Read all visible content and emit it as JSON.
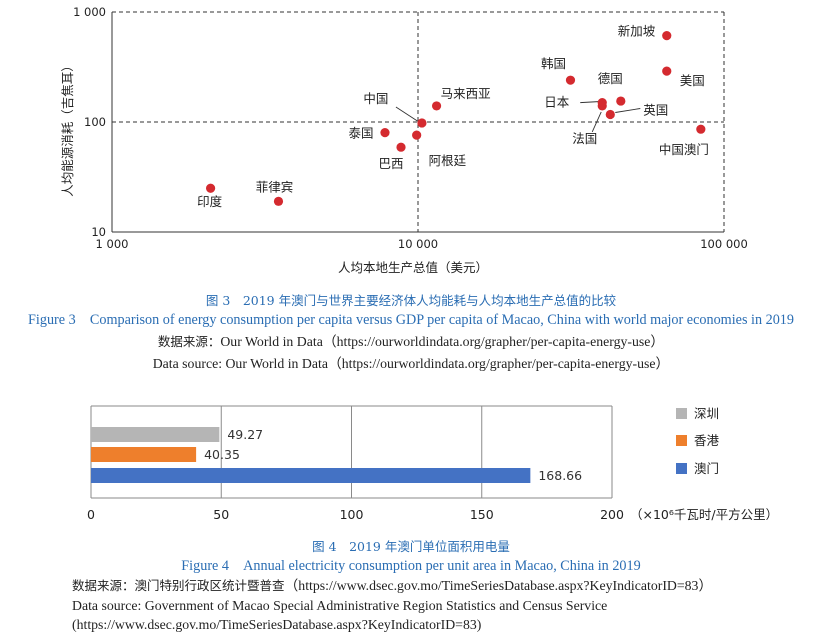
{
  "chart_data": [
    {
      "type": "scatter",
      "title": "",
      "xlabel": "人均本地生产总值（美元）",
      "ylabel": "人均能源消耗（吉焦耳）",
      "x_scale": "log",
      "y_scale": "log",
      "xlim": [
        1000,
        100000
      ],
      "ylim": [
        10,
        1000
      ],
      "x_ticks": [
        1000,
        10000,
        100000
      ],
      "x_tick_labels": [
        "1 000",
        "10 000",
        "100 000"
      ],
      "y_ticks": [
        10,
        100,
        1000
      ],
      "y_tick_labels": [
        "10",
        "100",
        "1 000"
      ],
      "reference_lines": {
        "x": 10000,
        "y": 100,
        "style": "dashed"
      },
      "grid": false,
      "point_color": "#d42a2f",
      "points": [
        {
          "label": "印度",
          "x": 2100,
          "y": 25
        },
        {
          "label": "菲律宾",
          "x": 3500,
          "y": 19
        },
        {
          "label": "泰国",
          "x": 7800,
          "y": 80
        },
        {
          "label": "巴西",
          "x": 8800,
          "y": 59
        },
        {
          "label": "阿根廷",
          "x": 9900,
          "y": 76
        },
        {
          "label": "中国",
          "x": 10300,
          "y": 98
        },
        {
          "label": "马来西亚",
          "x": 11500,
          "y": 140
        },
        {
          "label": "韩国",
          "x": 31500,
          "y": 240
        },
        {
          "label": "日本",
          "x": 40000,
          "y": 150
        },
        {
          "label": "法国",
          "x": 40000,
          "y": 140
        },
        {
          "label": "英国",
          "x": 42500,
          "y": 117
        },
        {
          "label": "德国",
          "x": 46000,
          "y": 155
        },
        {
          "label": "新加坡",
          "x": 65000,
          "y": 610
        },
        {
          "label": "美国",
          "x": 65000,
          "y": 290
        },
        {
          "label": "中国澳门",
          "x": 84000,
          "y": 86
        }
      ]
    },
    {
      "type": "bar",
      "orientation": "horizontal",
      "title": "",
      "categories": [
        "深圳",
        "香港",
        "澳门"
      ],
      "values": [
        49.27,
        40.35,
        168.66
      ],
      "value_labels": [
        "49.27",
        "40.35",
        "168.66"
      ],
      "colors": [
        "#b5b5b5",
        "#ee7f2c",
        "#4472c4"
      ],
      "xlim": [
        0,
        200
      ],
      "x_ticks": [
        0,
        50,
        100,
        150,
        200
      ],
      "xlabel": "（×10⁶千瓦时/平方公里）",
      "legend": "right",
      "grid": true
    }
  ],
  "figure3": {
    "caption_zh": "图 3　2019 年澳门与世界主要经济体人均能耗与人均本地生产总值的比较",
    "caption_en": "Figure 3　Comparison of energy consumption per capita versus GDP per capita of Macao, China with world major economies in 2019",
    "source_zh_label": "数据来源：",
    "source_zh_text": "Our World in Data（https://ourworldindata.org/grapher/per-capita-energy-use）",
    "source_en": "Data source: Our World in Data（https://ourworldindata.org/grapher/per-capita-energy-use）"
  },
  "figure4": {
    "caption_zh": "图 4　2019 年澳门单位面积用电量",
    "caption_en": "Figure 4　Annual electricity consumption per unit area in Macao, China in 2019",
    "source_zh_label": "数据来源：澳门特别行政区统计暨普查",
    "source_zh_text": "（https://www.dsec.gov.mo/TimeSeriesDatabase.aspx?KeyIndicatorID=83）",
    "source_en": "Data source: Government of Macao Special Administrative Region Statistics and Census Service (https://www.dsec.gov.mo/TimeSeriesDatabase.aspx?KeyIndicatorID=83)"
  }
}
